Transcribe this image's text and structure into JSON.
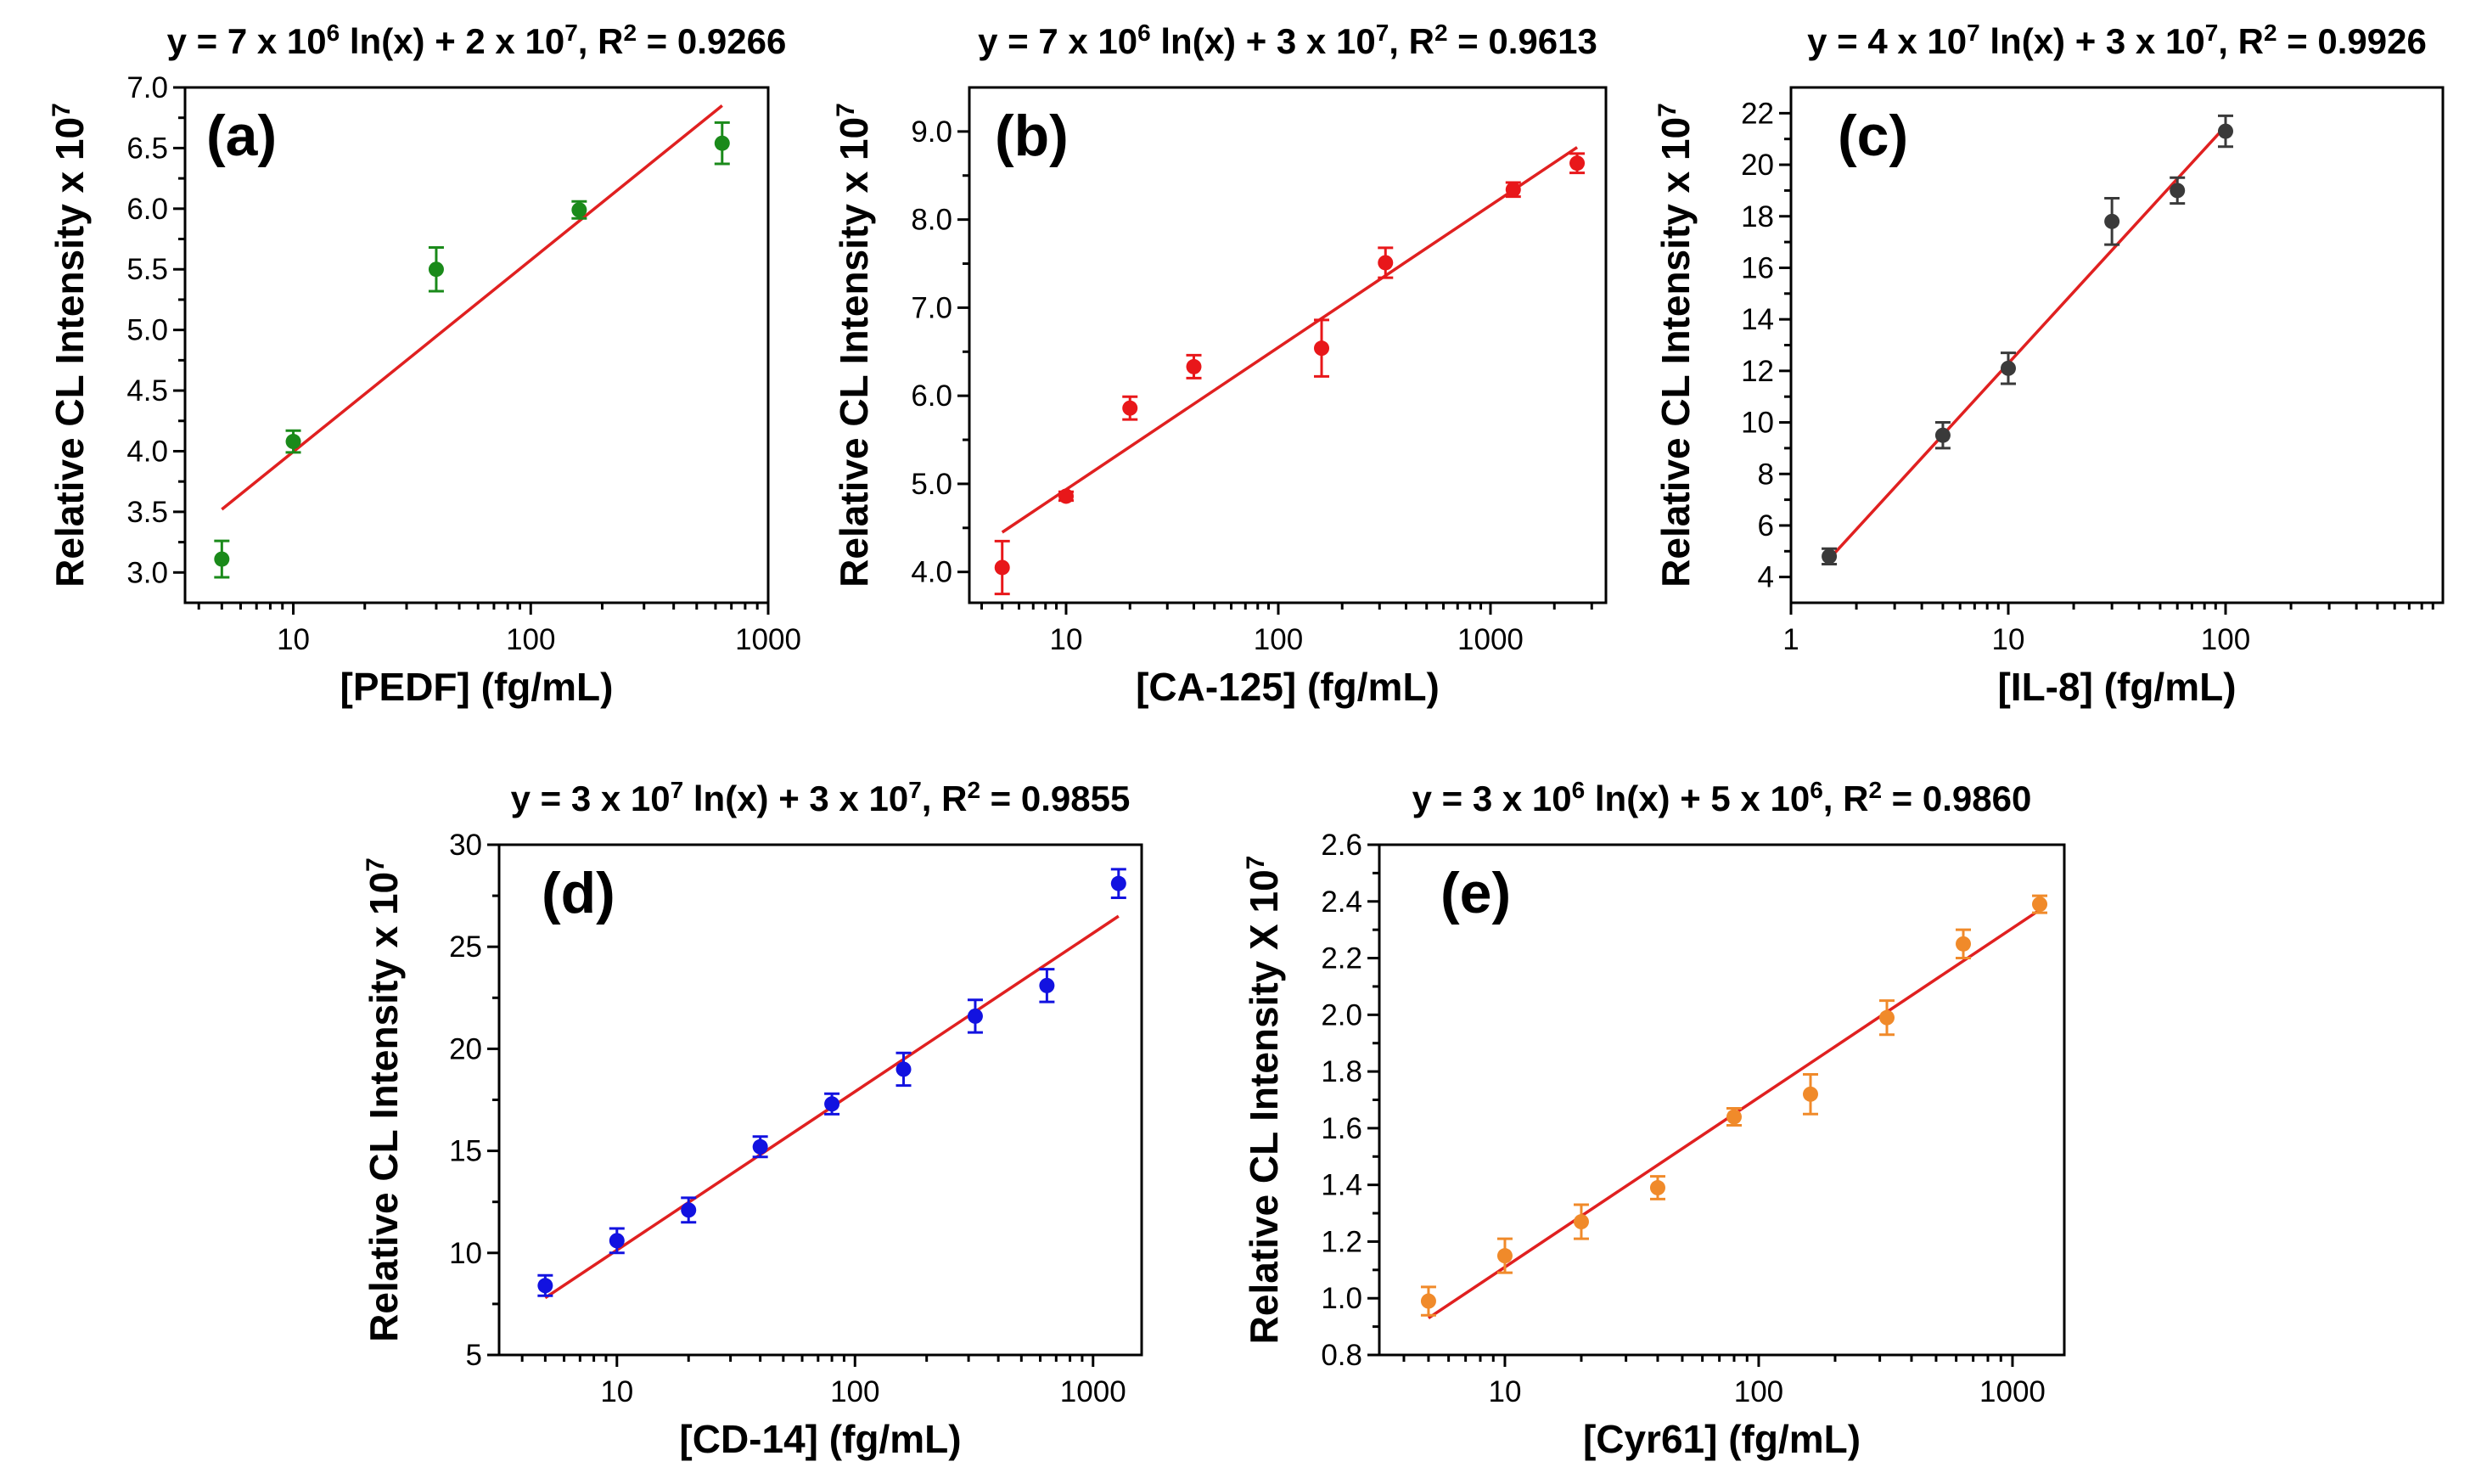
{
  "chart_data": [
    {
      "panel": "a",
      "type": "scatter",
      "panel_label": "(a)",
      "title_parts": [
        "y = 7 x 10",
        "6",
        " ln(x) + 2 x 10",
        "7",
        ", R",
        "2",
        " = 0.9266"
      ],
      "xlabel": "[PEDF] (fg/mL)",
      "ylabel_parts": [
        "Relative CL Intensity x 10",
        "7"
      ],
      "xscale": "log",
      "xlim": [
        3.5,
        1000
      ],
      "ylim": [
        2.75,
        7.0
      ],
      "xticks": [
        10,
        100,
        1000
      ],
      "xtick_labels": [
        "10",
        "100",
        "1000"
      ],
      "yticks": [
        3.0,
        3.5,
        4.0,
        4.5,
        5.0,
        5.5,
        6.0,
        6.5,
        7.0
      ],
      "ytick_labels": [
        "3.0",
        "3.5",
        "4.0",
        "4.5",
        "5.0",
        "5.5",
        "6.0",
        "6.5",
        "7.0"
      ],
      "x": [
        5,
        10,
        40,
        160,
        640
      ],
      "y": [
        3.11,
        4.08,
        5.5,
        5.99,
        6.54
      ],
      "yerr": [
        0.15,
        0.09,
        0.18,
        0.07,
        0.17
      ],
      "point_color": "#1a8a1a",
      "fit": {
        "x": [
          5,
          640
        ],
        "y": [
          3.52,
          6.85
        ]
      },
      "fit_color": "#e02020"
    },
    {
      "panel": "b",
      "type": "scatter",
      "panel_label": "(b)",
      "title_parts": [
        "y = 7 x 10",
        "6",
        " ln(x) + 3 x 10",
        "7",
        ", R",
        "2",
        " = 0.9613"
      ],
      "xlabel": "[CA-125] (fg/mL)",
      "ylabel_parts": [
        "Relative CL Intensity x 10",
        "7"
      ],
      "xscale": "log",
      "xlim": [
        3.5,
        3500
      ],
      "ylim": [
        3.65,
        9.5
      ],
      "xticks": [
        10,
        100,
        1000
      ],
      "xtick_labels": [
        "10",
        "100",
        "1000"
      ],
      "yticks": [
        4.0,
        5.0,
        6.0,
        7.0,
        8.0,
        9.0
      ],
      "ytick_labels": [
        "4.0",
        "5.0",
        "6.0",
        "7.0",
        "8.0",
        "9.0"
      ],
      "x": [
        5,
        10,
        20,
        40,
        160,
        320,
        1280,
        2560
      ],
      "y": [
        4.05,
        4.86,
        5.86,
        6.33,
        6.54,
        7.51,
        8.34,
        8.64
      ],
      "yerr": [
        0.3,
        0.05,
        0.13,
        0.13,
        0.32,
        0.17,
        0.08,
        0.11
      ],
      "point_color": "#e8171a",
      "fit": {
        "x": [
          5,
          2560
        ],
        "y": [
          4.45,
          8.82
        ]
      },
      "fit_color": "#e02020"
    },
    {
      "panel": "c",
      "type": "scatter",
      "panel_label": "(c)",
      "title_parts": [
        "y = 4 x 10",
        "7",
        " ln(x) + 3 x 10",
        "7",
        ", R",
        "2",
        " = 0.9926"
      ],
      "xlabel": "[IL-8] (fg/mL)",
      "ylabel_parts": [
        "Relative CL Intensity x 10",
        "7"
      ],
      "xscale": "log",
      "xlim": [
        1,
        1000
      ],
      "ylim": [
        3,
        23
      ],
      "xticks": [
        1,
        10,
        100
      ],
      "xtick_labels": [
        "1",
        "10",
        "100"
      ],
      "yticks": [
        4,
        6,
        8,
        10,
        12,
        14,
        16,
        18,
        20,
        22
      ],
      "ytick_labels": [
        "4",
        "6",
        "8",
        "10",
        "12",
        "14",
        "16",
        "18",
        "20",
        "22"
      ],
      "x": [
        1.5,
        5,
        10,
        30,
        60,
        100
      ],
      "y": [
        4.8,
        9.5,
        12.1,
        17.8,
        19.0,
        21.3
      ],
      "yerr": [
        0.3,
        0.5,
        0.6,
        0.9,
        0.5,
        0.6
      ],
      "point_color": "#3a3a3a",
      "fit": {
        "x": [
          1.5,
          100
        ],
        "y": [
          4.7,
          21.5
        ]
      },
      "fit_color": "#e02020"
    },
    {
      "panel": "d",
      "type": "scatter",
      "panel_label": "(d)",
      "title_parts": [
        "y = 3 x 10",
        "7",
        " ln(x) + 3 x 10",
        "7",
        ", R",
        "2",
        " = 0.9855"
      ],
      "xlabel": "[CD-14] (fg/mL)",
      "ylabel_parts": [
        "Relative CL Intensity x 10",
        "7"
      ],
      "xscale": "log",
      "xlim": [
        3.2,
        1600
      ],
      "ylim": [
        5,
        30
      ],
      "xticks": [
        10,
        100,
        1000
      ],
      "xtick_labels": [
        "10",
        "100",
        "1000"
      ],
      "yticks": [
        5,
        10,
        15,
        20,
        25,
        30
      ],
      "ytick_labels": [
        "5",
        "10",
        "15",
        "20",
        "25",
        "30"
      ],
      "x": [
        5,
        10,
        20,
        40,
        80,
        160,
        320,
        640,
        1280
      ],
      "y": [
        8.4,
        10.6,
        12.1,
        15.2,
        17.3,
        19.0,
        21.6,
        23.1,
        28.1
      ],
      "yerr": [
        0.5,
        0.6,
        0.6,
        0.5,
        0.5,
        0.8,
        0.8,
        0.8,
        0.7
      ],
      "point_color": "#1212e0",
      "fit": {
        "x": [
          5,
          1280
        ],
        "y": [
          7.8,
          26.5
        ]
      },
      "fit_color": "#e02020"
    },
    {
      "panel": "e",
      "type": "scatter",
      "panel_label": "(e)",
      "title_parts": [
        "y = 3 x 10",
        "6",
        " ln(x) + 5 x 10",
        "6",
        ", R",
        "2",
        " = 0.9860"
      ],
      "xlabel": "[Cyr61] (fg/mL)",
      "ylabel_parts": [
        "Relative CL Intensity X 10",
        "7"
      ],
      "xscale": "log",
      "xlim": [
        3.2,
        1600
      ],
      "ylim": [
        0.8,
        2.6
      ],
      "xticks": [
        10,
        100,
        1000
      ],
      "xtick_labels": [
        "10",
        "100",
        "1000"
      ],
      "yticks": [
        0.8,
        1.0,
        1.2,
        1.4,
        1.6,
        1.8,
        2.0,
        2.2,
        2.4,
        2.6
      ],
      "ytick_labels": [
        "0.8",
        "1.0",
        "1.2",
        "1.4",
        "1.6",
        "1.8",
        "2.0",
        "2.2",
        "2.4",
        "2.6"
      ],
      "x": [
        5,
        10,
        20,
        40,
        80,
        160,
        320,
        640,
        1280
      ],
      "y": [
        0.99,
        1.15,
        1.27,
        1.39,
        1.64,
        1.72,
        1.99,
        2.25,
        2.39
      ],
      "yerr": [
        0.05,
        0.06,
        0.06,
        0.04,
        0.03,
        0.07,
        0.06,
        0.05,
        0.03
      ],
      "point_color": "#f08a2a",
      "fit": {
        "x": [
          5,
          1280
        ],
        "y": [
          0.93,
          2.37
        ]
      },
      "fit_color": "#e02020"
    }
  ]
}
